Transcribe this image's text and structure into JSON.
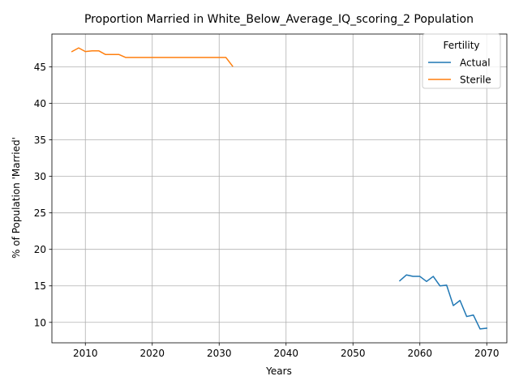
{
  "chart_data": {
    "type": "line",
    "title": "Proportion Married in White_Below_Average_IQ_scoring_2 Population",
    "xlabel": "Years",
    "ylabel": "% of Population 'Married'",
    "xlim": [
      2005,
      2073
    ],
    "ylim": [
      7.2,
      49.5
    ],
    "xticks": [
      2010,
      2020,
      2030,
      2040,
      2050,
      2060,
      2070
    ],
    "yticks": [
      10,
      15,
      20,
      25,
      30,
      35,
      40,
      45
    ],
    "grid": true,
    "legend": {
      "title": "Fertility",
      "placement": "top-right"
    },
    "series": [
      {
        "name": "Actual",
        "color": "#1f77b4",
        "x": [
          2057,
          2058,
          2059,
          2060,
          2061,
          2062,
          2063,
          2064,
          2065,
          2066,
          2067,
          2068,
          2069,
          2070
        ],
        "y": [
          15.7,
          16.5,
          16.3,
          16.3,
          15.6,
          16.3,
          15.0,
          15.1,
          12.3,
          13.0,
          10.8,
          11.0,
          9.1,
          9.2
        ]
      },
      {
        "name": "Sterile",
        "color": "#ff7f0e",
        "x": [
          2008,
          2009,
          2010,
          2011,
          2012,
          2013,
          2014,
          2015,
          2016,
          2017,
          2018,
          2019,
          2020,
          2021,
          2022,
          2023,
          2024,
          2025,
          2026,
          2027,
          2028,
          2029,
          2030,
          2031,
          2032
        ],
        "y": [
          47.1,
          47.6,
          47.1,
          47.2,
          47.2,
          46.7,
          46.7,
          46.7,
          46.3,
          46.3,
          46.3,
          46.3,
          46.3,
          46.3,
          46.3,
          46.3,
          46.3,
          46.3,
          46.3,
          46.3,
          46.3,
          46.3,
          46.3,
          46.3,
          45.1
        ]
      }
    ]
  }
}
